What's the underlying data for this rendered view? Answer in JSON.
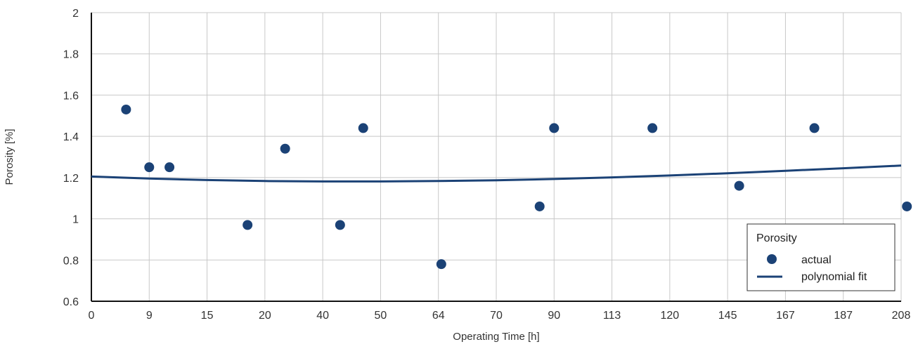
{
  "chart_data": {
    "type": "scatter",
    "xlabel": "Operating Time [h]",
    "ylabel": "Porosity [%]",
    "x_categories": [
      "0",
      "9",
      "15",
      "20",
      "40",
      "50",
      "64",
      "70",
      "90",
      "113",
      "120",
      "145",
      "167",
      "187",
      "208"
    ],
    "ylim": [
      0.6,
      2
    ],
    "y_ticks": [
      0.6,
      0.8,
      1,
      1.2,
      1.4,
      1.6,
      1.8,
      2
    ],
    "y_tick_labels": [
      "0.6",
      "0.8",
      "1",
      "1.2",
      "1.4",
      "1.6",
      "1.8",
      "2"
    ],
    "grid": true,
    "legend": {
      "title": "Porosity",
      "position": "bottom-right",
      "entries": [
        "actual",
        "polynomial fit"
      ]
    },
    "series": [
      {
        "name": "actual",
        "kind": "points",
        "color": "#1b4276",
        "points": [
          {
            "x": 0.6,
            "y": 1.53
          },
          {
            "x": 1.0,
            "y": 1.25
          },
          {
            "x": 1.35,
            "y": 1.25
          },
          {
            "x": 2.7,
            "y": 0.97
          },
          {
            "x": 3.35,
            "y": 1.34
          },
          {
            "x": 4.3,
            "y": 0.97
          },
          {
            "x": 4.7,
            "y": 1.44
          },
          {
            "x": 6.05,
            "y": 0.78
          },
          {
            "x": 7.75,
            "y": 1.06
          },
          {
            "x": 8.0,
            "y": 1.44
          },
          {
            "x": 9.7,
            "y": 1.44
          },
          {
            "x": 11.2,
            "y": 1.16
          },
          {
            "x": 12.5,
            "y": 1.44
          },
          {
            "x": 14.1,
            "y": 1.06
          }
        ]
      },
      {
        "name": "polynomial fit",
        "kind": "line",
        "color": "#1b4276",
        "points": [
          {
            "x": 0,
            "y": 1.205
          },
          {
            "x": 1,
            "y": 1.195
          },
          {
            "x": 2,
            "y": 1.188
          },
          {
            "x": 3,
            "y": 1.183
          },
          {
            "x": 4,
            "y": 1.181
          },
          {
            "x": 5,
            "y": 1.181
          },
          {
            "x": 6,
            "y": 1.183
          },
          {
            "x": 7,
            "y": 1.187
          },
          {
            "x": 8,
            "y": 1.193
          },
          {
            "x": 9,
            "y": 1.201
          },
          {
            "x": 10,
            "y": 1.21
          },
          {
            "x": 11,
            "y": 1.221
          },
          {
            "x": 12,
            "y": 1.233
          },
          {
            "x": 13,
            "y": 1.245
          },
          {
            "x": 14,
            "y": 1.258
          }
        ]
      }
    ]
  }
}
